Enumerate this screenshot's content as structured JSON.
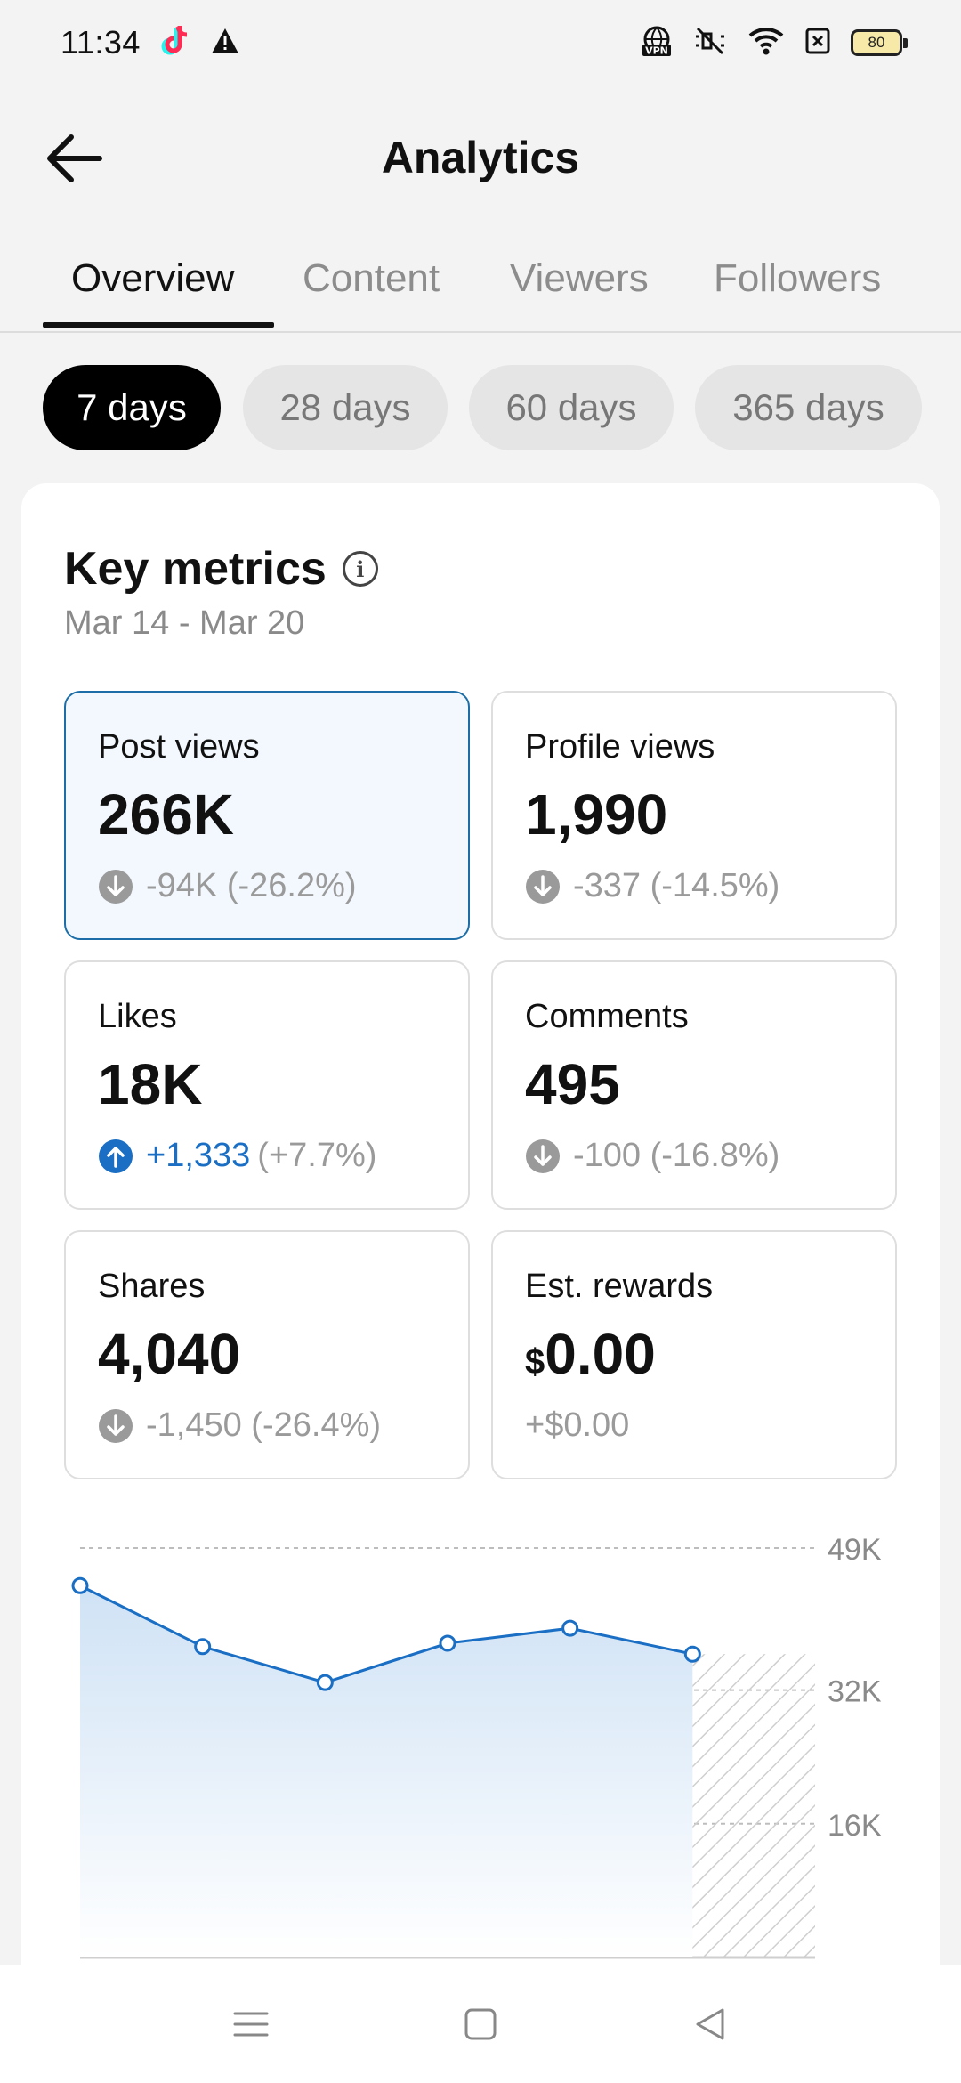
{
  "status_bar": {
    "time": "11:34",
    "battery": "80",
    "icons": [
      "tiktok-icon",
      "warning-icon",
      "vpn-icon",
      "mute-icon",
      "wifi-icon",
      "sim-icon",
      "battery-icon"
    ]
  },
  "header": {
    "title": "Analytics"
  },
  "tabs": [
    {
      "label": "Overview",
      "active": true
    },
    {
      "label": "Content",
      "active": false
    },
    {
      "label": "Viewers",
      "active": false
    },
    {
      "label": "Followers",
      "active": false
    }
  ],
  "ranges": [
    {
      "label": "7 days",
      "active": true
    },
    {
      "label": "28 days",
      "active": false
    },
    {
      "label": "60 days",
      "active": false
    },
    {
      "label": "365 days",
      "active": false
    }
  ],
  "key_metrics": {
    "title": "Key metrics",
    "date_range": "Mar 14 - Mar 20",
    "items": [
      {
        "label": "Post views",
        "value": "266K",
        "delta": "-94K (-26.2%)",
        "trend": "down",
        "selected": true
      },
      {
        "label": "Profile views",
        "value": "1,990",
        "delta": "-337 (-14.5%)",
        "trend": "down",
        "selected": false
      },
      {
        "label": "Likes",
        "value": "18K",
        "delta_main": "+1,333",
        "delta_pct": "(+7.7%)",
        "trend": "up",
        "selected": false
      },
      {
        "label": "Comments",
        "value": "495",
        "delta": "-100 (-16.8%)",
        "trend": "down",
        "selected": false
      },
      {
        "label": "Shares",
        "value": "4,040",
        "delta": "-1,450 (-26.4%)",
        "trend": "down",
        "selected": false
      },
      {
        "label": "Est. rewards",
        "currency": "$",
        "value": "0.00",
        "delta": "+$0.00",
        "trend": "none",
        "selected": false
      }
    ]
  },
  "chart_data": {
    "type": "area",
    "title": "",
    "ylabel": "",
    "y_ticks": [
      "49K",
      "32K",
      "16K"
    ],
    "y_tick_values": [
      49000,
      32000,
      16000
    ],
    "ylim": [
      0,
      49000
    ],
    "series": [
      {
        "values": [
          44500,
          37200,
          32900,
          37600,
          39400,
          36300
        ]
      }
    ],
    "incomplete_last_day": true,
    "colors": {
      "line": "#1a6fc4",
      "fill_top": "#cfe2f5",
      "fill_bottom": "#ffffff",
      "hatch": "#cfcfcf"
    }
  },
  "nav_bar": {
    "icons": [
      "menu-icon",
      "home-icon",
      "back-icon"
    ]
  }
}
